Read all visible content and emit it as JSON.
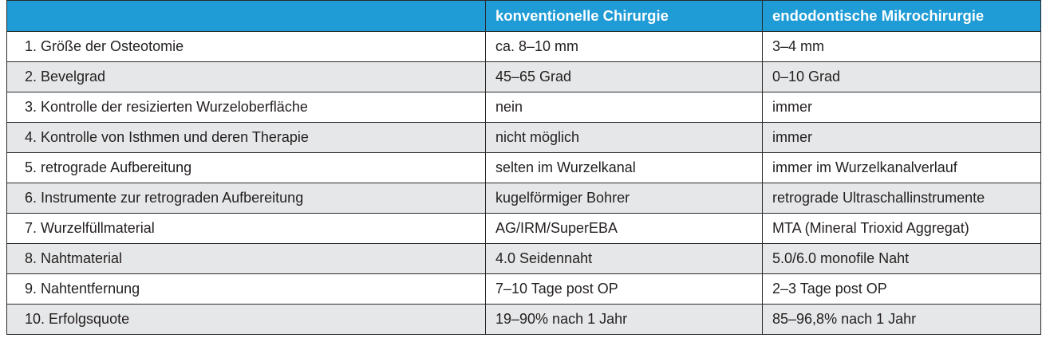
{
  "header": {
    "col1": "",
    "col2": "konventionelle Chirurgie",
    "col3": "endodontische Mikrochirurgie"
  },
  "rows": [
    {
      "label": "1. Größe der Osteotomie",
      "conventional": "ca. 8–10 mm",
      "micro": "3–4 mm"
    },
    {
      "label": "2. Bevelgrad",
      "conventional": "45–65 Grad",
      "micro": "0–10 Grad"
    },
    {
      "label": "3. Kontrolle der resizierten Wurzeloberfläche",
      "conventional": "nein",
      "micro": "immer"
    },
    {
      "label": "4. Kontrolle von Isthmen und deren Therapie",
      "conventional": "nicht möglich",
      "micro": "immer"
    },
    {
      "label": "5. retrograde Aufbereitung",
      "conventional": "selten im Wurzelkanal",
      "micro": "immer im Wurzelkanalverlauf"
    },
    {
      "label": "6. Instrumente zur retrograden Aufbereitung",
      "conventional": "kugelförmiger Bohrer",
      "micro": "retrograde Ultraschallinstrumente"
    },
    {
      "label": "7. Wurzelfüllmaterial",
      "conventional": "AG/IRM/SuperEBA",
      "micro": "MTA (Mineral Trioxid Aggregat)"
    },
    {
      "label": "8. Nahtmaterial",
      "conventional": "4.0 Seidennaht",
      "micro": "5.0/6.0 monofile Naht"
    },
    {
      "label": "9. Nahtentfernung",
      "conventional": "7–10 Tage post OP",
      "micro": "2–3 Tage post OP"
    },
    {
      "label": "10. Erfolgsquote",
      "conventional": "19–90% nach 1 Jahr",
      "micro": "85–96,8% nach 1 Jahr"
    }
  ],
  "colors": {
    "header_bg": "#1f9bd5",
    "header_text": "#ffffff",
    "shaded_row_bg": "#e6e7e8",
    "border": "#2a2a2a"
  }
}
